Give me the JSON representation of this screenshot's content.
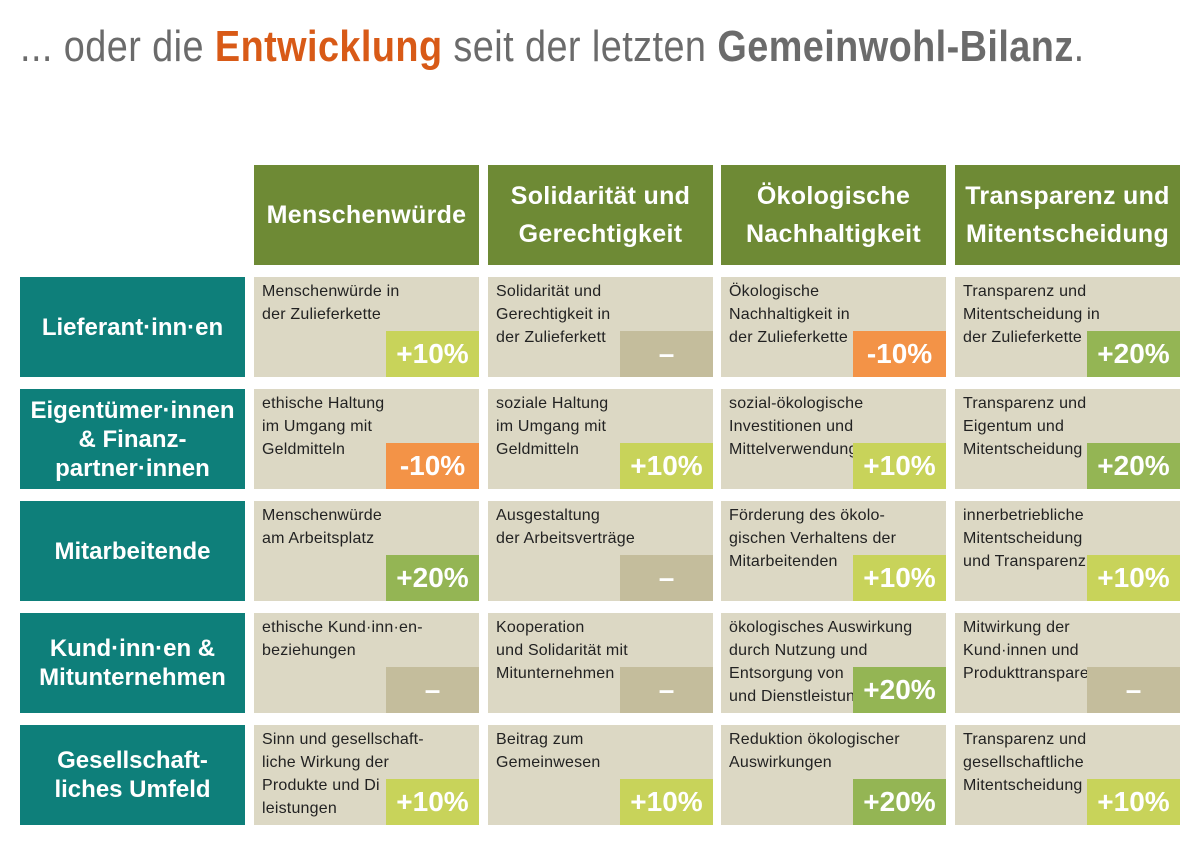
{
  "title": {
    "prefix": "... oder die ",
    "highlight": "Entwicklung",
    "middle": " seit der letzten ",
    "bold": "Gemeinwohl-Bilanz",
    "suffix": "."
  },
  "colors": {
    "column_header": "#6e8a35",
    "row_header": "#0e7f7a",
    "cell": "#dcd8c4",
    "plus10": "#c8d35a",
    "plus20": "#94b554",
    "minus10": "#f39347",
    "neutral": "#c4bd9c",
    "accent": "#d85a17"
  },
  "columns": [
    "Menschenwürde",
    "Solidarität und\nGerechtigkeit",
    "Ökologische\nNachhaltigkeit",
    "Transparenz und\nMitentscheidung"
  ],
  "rows": [
    {
      "label": "Lieferant·inn·en",
      "cells": [
        {
          "text": "Menschenwürde in\nder Zulieferkette",
          "value": "+10%",
          "kind": "plus10"
        },
        {
          "text": "Solidarität und\nGerechtigkeit in\nder Zulieferkett",
          "value": "–",
          "kind": "neutral"
        },
        {
          "text": "Ökologische\nNachhaltigkeit in\nder Zulieferkette",
          "value": "-10%",
          "kind": "minus10"
        },
        {
          "text": "Transparenz und\nMitentscheidung in\nder Zulieferkette",
          "value": "+20%",
          "kind": "plus20"
        }
      ]
    },
    {
      "label": "Eigentümer·innen\n& Finanz-\npartner·innen",
      "cells": [
        {
          "text": "ethische Haltung\nim Umgang mit\nGeldmitteln",
          "value": "-10%",
          "kind": "minus10"
        },
        {
          "text": "soziale Haltung\nim Umgang mit\nGeldmitteln",
          "value": "+10%",
          "kind": "plus10"
        },
        {
          "text": "sozial-ökologische\nInvestitionen und\nMittelverwendung",
          "value": "+10%",
          "kind": "plus10"
        },
        {
          "text": "Transparenz und\nEigentum und\nMitentscheidung",
          "value": "+20%",
          "kind": "plus20"
        }
      ]
    },
    {
      "label": "Mitarbeitende",
      "cells": [
        {
          "text": "Menschenwürde\nam Arbeitsplatz",
          "value": "+20%",
          "kind": "plus20"
        },
        {
          "text": "Ausgestaltung\nder Arbeitsverträge",
          "value": "–",
          "kind": "neutral"
        },
        {
          "text": "Förderung des ökolo-\ngischen Verhaltens der\nMitarbeitenden",
          "value": "+10%",
          "kind": "plus10"
        },
        {
          "text": "innerbetriebliche\nMitentscheidung\nund Transparenz",
          "value": "+10%",
          "kind": "plus10"
        }
      ]
    },
    {
      "label": "Kund·inn·en &\nMitunternehmen",
      "cells": [
        {
          "text": "ethische Kund·inn·en-\nbeziehungen",
          "value": "–",
          "kind": "neutral"
        },
        {
          "text": "Kooperation\nund Solidarität mit\nMitunternehmen",
          "value": "–",
          "kind": "neutral"
        },
        {
          "text": "ökologisches Auswirkung\ndurch Nutzung und\nEntsorgung von\nund Dienstleistungen",
          "value": "+20%",
          "kind": "plus20"
        },
        {
          "text": "Mitwirkung  der\nKund·innen und\nProdukttransparenz",
          "value": "–",
          "kind": "neutral"
        }
      ]
    },
    {
      "label": "Gesellschaft-\nliches Umfeld",
      "cells": [
        {
          "text": "Sinn und gesellschaft-\nliche Wirkung der\nProdukte und Di\nleistungen",
          "value": "+10%",
          "kind": "plus10"
        },
        {
          "text": "Beitrag zum\nGemeinwesen",
          "value": "+10%",
          "kind": "plus10"
        },
        {
          "text": "Reduktion ökologischer\nAuswirkungen",
          "value": "+20%",
          "kind": "plus20"
        },
        {
          "text": "Transparenz und\ngesellschaftliche\nMitentscheidung",
          "value": "+10%",
          "kind": "plus10"
        }
      ]
    }
  ]
}
